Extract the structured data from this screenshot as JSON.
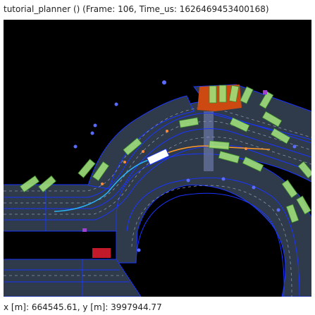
{
  "window": {
    "title": "tutorial_planner () (Frame: 106, Time_us: 1626469453400168)"
  },
  "status": {
    "coordinates": "x [m]: 664545.61, y [m]: 3997944.77"
  },
  "colors": {
    "background": "#000000",
    "road": "#2f3a4a",
    "lane_line": "#1a35ff",
    "lane_center": "#8a96a8",
    "vehicle_fill": "#9fe07a",
    "ego_vehicle": "#ffffff",
    "planned_path": "#ff9a2b",
    "route": "#29b8ff",
    "crosswalk": "#6b78a6",
    "static_object": "#cc4a12",
    "stop_marker": "#c21a2a",
    "pedestrian": "#5a6cff"
  },
  "scene": {
    "icons": [
      "vehicle-icon",
      "ego-vehicle-icon",
      "pedestrian-icon",
      "stop-line-icon"
    ]
  }
}
